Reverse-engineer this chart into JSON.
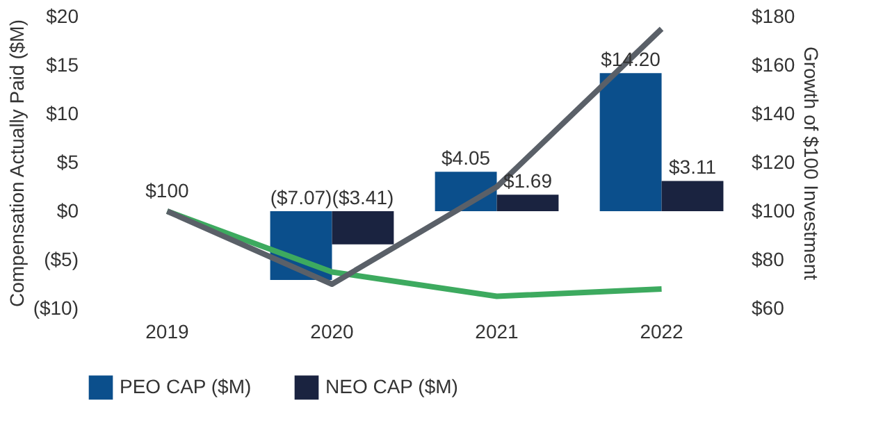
{
  "chart_data": {
    "type": "bar",
    "ylabel": "Compensation Actually Paid ($M)",
    "y2label": "Growth of $100 Investment",
    "categories": [
      "2019",
      "2020",
      "2021",
      "2022"
    ],
    "series": [
      {
        "name": "PEO CAP ($M)",
        "color": "#0b4f8c",
        "values": [
          null,
          -7.07,
          4.05,
          14.2
        ],
        "value_labels": [
          null,
          "($7.07)",
          "$4.05",
          "$14.20"
        ]
      },
      {
        "name": "NEO CAP ($M)",
        "color": "#1a2340",
        "values": [
          null,
          -3.41,
          1.69,
          3.11
        ],
        "value_labels": [
          null,
          "($3.41)",
          "$1.69",
          "$3.11"
        ]
      },
      {
        "type": "line",
        "axis": "y2",
        "color": "#3daa5f",
        "values": [
          100,
          75,
          65,
          68
        ],
        "value_labels": [
          "$100",
          null,
          null,
          null
        ]
      },
      {
        "type": "line",
        "axis": "y2",
        "color": "#5a6068",
        "values": [
          100,
          70,
          110,
          175
        ]
      }
    ],
    "ylim": [
      -10,
      20
    ],
    "yticks": [
      {
        "value": -10,
        "label": "($10)"
      },
      {
        "value": -5,
        "label": "($5)"
      },
      {
        "value": 0,
        "label": "$0"
      },
      {
        "value": 5,
        "label": "$5"
      },
      {
        "value": 10,
        "label": "$10"
      },
      {
        "value": 15,
        "label": "$15"
      },
      {
        "value": 20,
        "label": "$20"
      }
    ],
    "y2lim": [
      60,
      180
    ],
    "y2ticks": [
      {
        "value": 60,
        "label": "$60"
      },
      {
        "value": 80,
        "label": "$80"
      },
      {
        "value": 100,
        "label": "$100"
      },
      {
        "value": 120,
        "label": "$120"
      },
      {
        "value": 140,
        "label": "$140"
      },
      {
        "value": 160,
        "label": "$160"
      },
      {
        "value": 180,
        "label": "$180"
      }
    ],
    "legend": "bottom",
    "grid": false,
    "line_style": "solid",
    "marker": "none"
  }
}
